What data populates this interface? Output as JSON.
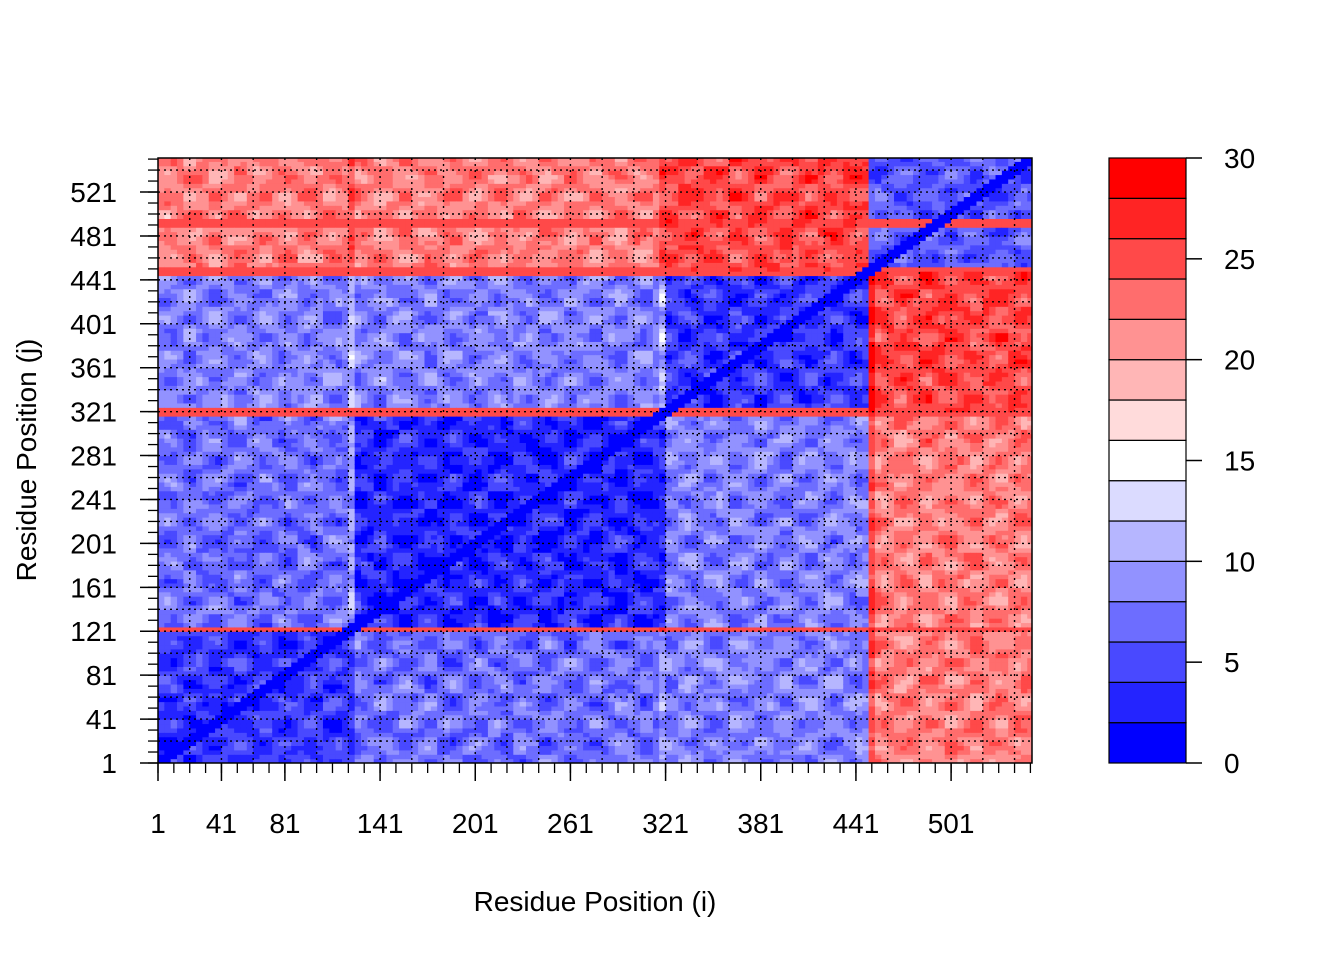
{
  "chart_data": {
    "type": "heatmap",
    "title": "",
    "xlabel": "Residue Position (i)",
    "ylabel": "Residue Position (j)",
    "xlim": [
      1,
      552
    ],
    "ylim": [
      1,
      552
    ],
    "x_tick_labels": [
      "1",
      "41",
      "81",
      "141",
      "201",
      "261",
      "321",
      "381",
      "441",
      "501"
    ],
    "y_tick_labels": [
      "1",
      "41",
      "81",
      "121",
      "161",
      "201",
      "241",
      "281",
      "321",
      "361",
      "401",
      "441",
      "481",
      "521"
    ],
    "grid": "dotted",
    "colorbar": {
      "min": 0,
      "max": 30,
      "step": 2,
      "tick_labels": [
        "0",
        "5",
        "10",
        "15",
        "20",
        "25",
        "30"
      ],
      "levels": [
        {
          "from": 0,
          "to": 2,
          "color": "#0000FF"
        },
        {
          "from": 2,
          "to": 4,
          "color": "#2424FF"
        },
        {
          "from": 4,
          "to": 6,
          "color": "#4949FF"
        },
        {
          "from": 6,
          "to": 8,
          "color": "#6D6DFF"
        },
        {
          "from": 8,
          "to": 10,
          "color": "#9292FF"
        },
        {
          "from": 10,
          "to": 12,
          "color": "#B6B6FF"
        },
        {
          "from": 12,
          "to": 14,
          "color": "#DBDBFF"
        },
        {
          "from": 14,
          "to": 16,
          "color": "#FFFFFF"
        },
        {
          "from": 16,
          "to": 18,
          "color": "#FFDBDB"
        },
        {
          "from": 18,
          "to": 20,
          "color": "#FFB6B6"
        },
        {
          "from": 20,
          "to": 22,
          "color": "#FF9292"
        },
        {
          "from": 22,
          "to": 24,
          "color": "#FF6D6D"
        },
        {
          "from": 24,
          "to": 26,
          "color": "#FF4949"
        },
        {
          "from": 26,
          "to": 28,
          "color": "#FF2424"
        },
        {
          "from": 28,
          "to": 30,
          "color": "#FF0000"
        }
      ]
    },
    "domains": [
      {
        "start": 1,
        "end": 125
      },
      {
        "start": 126,
        "end": 322
      },
      {
        "start": 323,
        "end": 450
      },
      {
        "start": 451,
        "end": 552
      }
    ],
    "region_means": [
      [
        4,
        7,
        8,
        22
      ],
      [
        7,
        3,
        8,
        22
      ],
      [
        8,
        8,
        4,
        25
      ],
      [
        22,
        22,
        25,
        6
      ]
    ],
    "high_value_rows": [
      123,
      320,
      450,
      492
    ]
  }
}
